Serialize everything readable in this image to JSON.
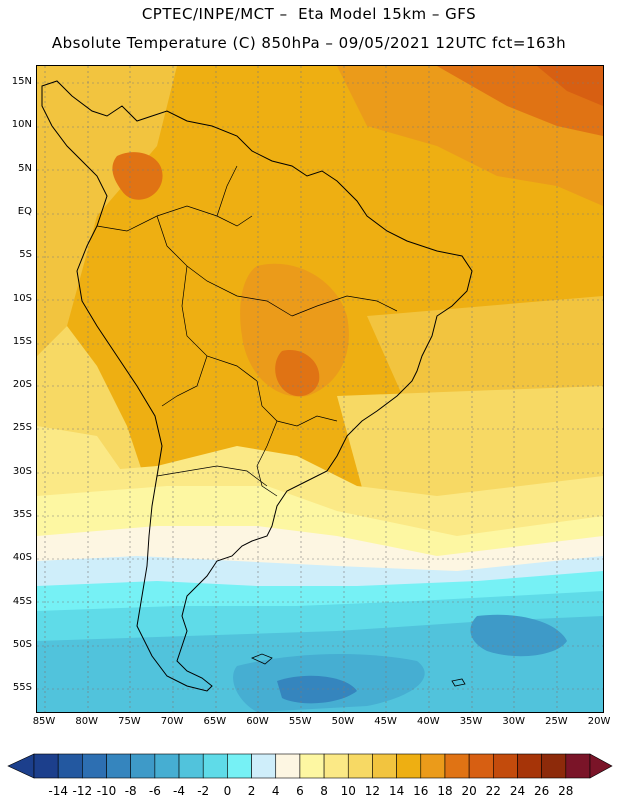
{
  "header": {
    "line1": "CPTEC/INPE/MCT –  Eta Model 15km – GFS",
    "line2": "Absolute Temperature (C) 850hPa – 09/05/2021 12UTC fct=163h"
  },
  "axes": {
    "lat_labels": [
      "15N",
      "10N",
      "5N",
      "EQ",
      "5S",
      "10S",
      "15S",
      "20S",
      "25S",
      "30S",
      "35S",
      "40S",
      "45S",
      "50S",
      "55S"
    ],
    "lon_labels": [
      "85W",
      "80W",
      "75W",
      "70W",
      "65W",
      "60W",
      "55W",
      "50W",
      "45W",
      "40W",
      "35W",
      "30W",
      "25W",
      "20W"
    ]
  },
  "colorbar": {
    "labels": [
      "-14",
      "-12",
      "-10",
      "-8",
      "-6",
      "-4",
      "-2",
      "0",
      "2",
      "4",
      "6",
      "8",
      "10",
      "12",
      "14",
      "16",
      "18",
      "20",
      "22",
      "24",
      "26",
      "28"
    ],
    "colors": [
      "#1c3f8c",
      "#2358a0",
      "#2d6fb2",
      "#3585be",
      "#3e9ac8",
      "#46aed2",
      "#51c3dc",
      "#5fdbe8",
      "#76f1f5",
      "#cfeefa",
      "#fdf6e2",
      "#fdf7a2",
      "#fbe986",
      "#f7d964",
      "#f2c43f",
      "#eeaf12",
      "#eb9b1a",
      "#e07314",
      "#d75f12",
      "#c34b0c",
      "#a63408",
      "#8d2a0a",
      "#7a1428"
    ]
  },
  "map": {
    "region": "South America",
    "variable": "Absolute Temperature (C) 850hPa"
  }
}
